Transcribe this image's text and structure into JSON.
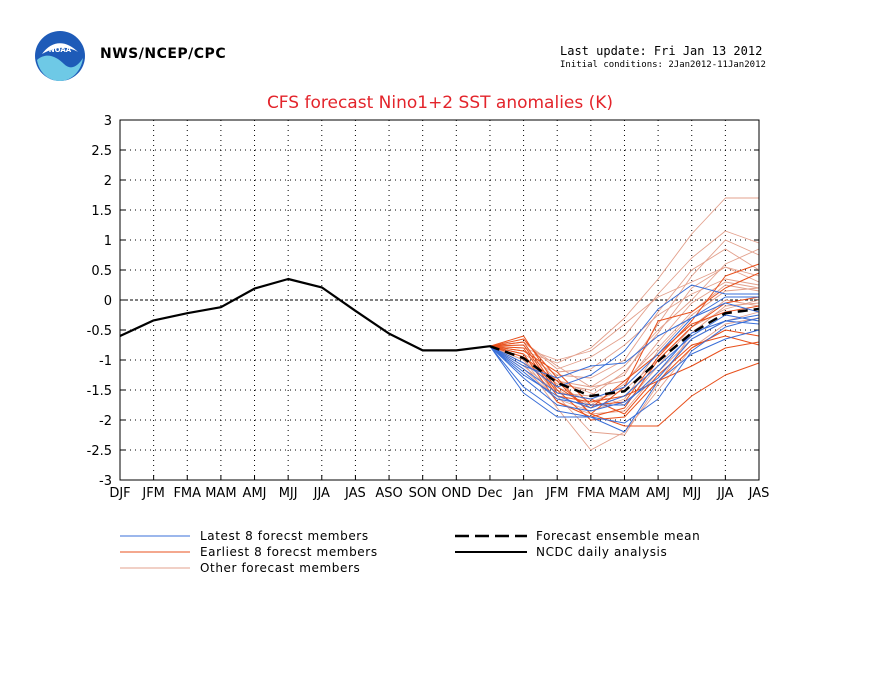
{
  "header": {
    "org": "NWS/NCEP/CPC",
    "last_update": "Last update: Fri Jan 13 2012",
    "initial_conditions": "Initial conditions: 2Jan2012-11Jan2012",
    "logo_icon": "noaa-logo-icon"
  },
  "colors": {
    "title": "#e3242b",
    "latest": "#3a6fd8",
    "earliest": "#e8501c",
    "other": "#e3a08c",
    "mean": "#000000",
    "analysis": "#000000",
    "grid": "#000000"
  },
  "chart_data": {
    "type": "line",
    "title": "CFS forecast Nino1+2 SST anomalies (K)",
    "xlabel": "",
    "ylabel": "",
    "categories": [
      "DJF",
      "JFM",
      "FMA",
      "MAM",
      "AMJ",
      "MJJ",
      "JJA",
      "JAS",
      "ASO",
      "SON",
      "OND",
      "Dec",
      "Jan",
      "JFM",
      "FMA",
      "MAM",
      "AMJ",
      "MJJ",
      "JJA",
      "JAS"
    ],
    "ylim": [
      -3,
      3
    ],
    "yticks": [
      "3",
      "2.5",
      "2",
      "1.5",
      "1",
      "0.5",
      "0",
      "-0.5",
      "-1",
      "-1.5",
      "-2",
      "-2.5",
      "-3"
    ],
    "grid": true,
    "legend": [
      {
        "key": "latest",
        "label": "Latest 8 forecst members"
      },
      {
        "key": "earliest",
        "label": "Earliest 8 forecst members"
      },
      {
        "key": "other",
        "label": "Other forecast members"
      },
      {
        "key": "mean",
        "label": "Forecast ensemble mean"
      },
      {
        "key": "analysis",
        "label": "NCDC daily analysis"
      }
    ],
    "analysis": {
      "name": "NCDC daily analysis",
      "x_index": [
        0,
        1,
        2,
        3,
        4,
        5,
        6,
        7,
        8,
        9,
        10,
        11
      ],
      "values": [
        -0.6,
        -0.34,
        -0.22,
        -0.12,
        0.19,
        0.35,
        0.21,
        -0.18,
        -0.56,
        -0.84,
        -0.84,
        -0.77
      ]
    },
    "ensemble_mean": {
      "name": "Forecast ensemble mean",
      "x_index": [
        11,
        12,
        13,
        14,
        15,
        16,
        17,
        18,
        19
      ],
      "values": [
        -0.77,
        -0.97,
        -1.38,
        -1.6,
        -1.52,
        -1.02,
        -0.55,
        -0.22,
        -0.15
      ]
    },
    "members": {
      "x_index": [
        11,
        12,
        13,
        14,
        15,
        16,
        17,
        18,
        19
      ],
      "latest": [
        [
          -0.77,
          -1.45,
          -1.85,
          -1.95,
          -2.05,
          -1.65,
          -0.85,
          -0.45,
          -0.3
        ],
        [
          -0.77,
          -1.3,
          -1.75,
          -1.85,
          -1.7,
          -1.3,
          -0.65,
          -0.35,
          -0.25
        ],
        [
          -0.77,
          -1.15,
          -1.55,
          -1.65,
          -1.45,
          -0.9,
          -0.3,
          0.05,
          0.05
        ],
        [
          -0.77,
          -1.05,
          -1.45,
          -1.25,
          -0.85,
          -0.15,
          0.25,
          0.1,
          0.1
        ],
        [
          -0.77,
          -1.2,
          -1.65,
          -1.75,
          -1.75,
          -1.2,
          -0.55,
          -0.35,
          -0.4
        ],
        [
          -0.77,
          -1.55,
          -1.95,
          -1.95,
          -2.2,
          -1.35,
          -0.9,
          -0.65,
          -0.5
        ],
        [
          -0.77,
          -1.1,
          -1.3,
          -1.1,
          -1.05,
          -0.6,
          -0.3,
          -0.05,
          -0.2
        ],
        [
          -0.77,
          -1.25,
          -1.6,
          -1.8,
          -1.6,
          -1.1,
          -0.6,
          -0.25,
          -0.35
        ]
      ],
      "earliest": [
        [
          -0.77,
          -0.65,
          -1.3,
          -1.9,
          -2.1,
          -2.1,
          -1.6,
          -1.25,
          -1.05
        ],
        [
          -0.77,
          -0.85,
          -1.2,
          -1.75,
          -1.7,
          -0.95,
          -0.35,
          0.4,
          0.6
        ],
        [
          -0.77,
          -0.7,
          -1.5,
          -2.0,
          -1.95,
          -1.35,
          -1.1,
          -0.8,
          -0.7
        ],
        [
          -0.77,
          -0.9,
          -1.7,
          -1.95,
          -1.8,
          -1.0,
          -0.45,
          -0.05,
          0.05
        ],
        [
          -0.77,
          -0.6,
          -1.45,
          -1.8,
          -1.35,
          -0.9,
          -0.4,
          -0.2,
          -0.1
        ],
        [
          -0.77,
          -0.8,
          -1.6,
          -1.7,
          -1.6,
          -1.35,
          -0.8,
          -0.5,
          -0.6
        ],
        [
          -0.77,
          -0.95,
          -1.35,
          -1.9,
          -1.45,
          -0.35,
          -0.2,
          0.2,
          0.45
        ],
        [
          -0.77,
          -0.75,
          -1.55,
          -1.65,
          -1.9,
          -1.25,
          -0.75,
          -0.6,
          -0.75
        ]
      ],
      "other": [
        [
          -0.77,
          -0.85,
          -1.05,
          -0.8,
          -0.3,
          0.35,
          1.1,
          1.7,
          1.7
        ],
        [
          -0.77,
          -0.7,
          -1.15,
          -0.95,
          -0.6,
          0.1,
          0.7,
          1.15,
          0.95
        ],
        [
          -0.77,
          -0.95,
          -1.4,
          -1.5,
          -1.25,
          -0.4,
          0.4,
          1.0,
          0.75
        ],
        [
          -0.77,
          -0.9,
          -1.25,
          -1.3,
          -1.0,
          -0.2,
          0.5,
          0.85,
          0.5
        ],
        [
          -0.77,
          -0.8,
          -1.0,
          -0.85,
          -0.4,
          0.05,
          0.3,
          0.55,
          0.4
        ],
        [
          -0.77,
          -1.0,
          -1.5,
          -1.75,
          -1.4,
          -0.7,
          -0.05,
          0.3,
          0.2
        ],
        [
          -0.77,
          -1.05,
          -1.8,
          -2.5,
          -2.2,
          -1.5,
          -0.8,
          -0.4,
          -0.3
        ],
        [
          -0.77,
          -0.9,
          -1.6,
          -2.2,
          -2.25,
          -1.4,
          -0.55,
          -0.1,
          -0.05
        ],
        [
          -0.77,
          -0.75,
          -1.35,
          -1.45,
          -1.35,
          -0.8,
          -0.2,
          0.25,
          0.15
        ],
        [
          -0.77,
          -1.1,
          -1.55,
          -1.6,
          -1.2,
          -0.55,
          0.2,
          0.55,
          0.3
        ],
        [
          -0.77,
          -1.0,
          -1.7,
          -1.9,
          -1.85,
          -1.2,
          -0.65,
          -0.35,
          -0.2
        ],
        [
          -0.77,
          -0.85,
          -1.2,
          -1.15,
          -0.75,
          -0.25,
          0.1,
          0.35,
          0.25
        ],
        [
          -0.77,
          -0.95,
          -1.45,
          -1.7,
          -1.5,
          -1.0,
          -0.45,
          0.0,
          -0.1
        ],
        [
          -0.77,
          -1.15,
          -1.65,
          -1.85,
          -1.65,
          -0.85,
          -0.25,
          0.15,
          0.2
        ],
        [
          -0.77,
          -0.7,
          -1.1,
          -1.45,
          -1.1,
          -0.5,
          0.0,
          0.6,
          0.85
        ],
        [
          -0.77,
          -1.05,
          -1.35,
          -1.55,
          -1.75,
          -1.1,
          -0.45,
          -0.15,
          0.0
        ]
      ]
    }
  }
}
